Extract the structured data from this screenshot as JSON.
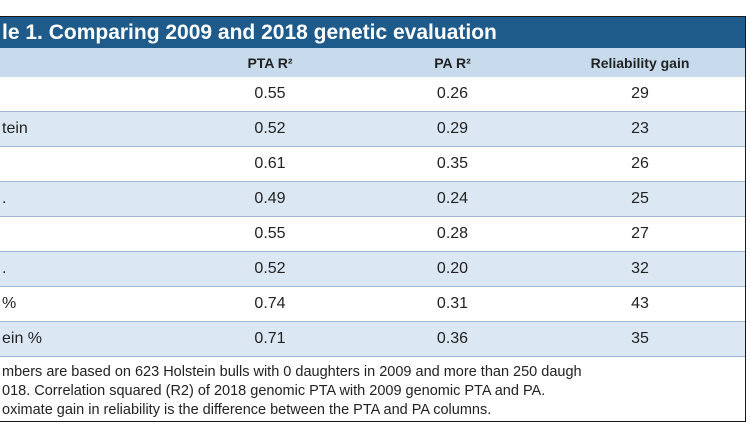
{
  "title": "le 1. Comparing 2009 and 2018 genetic evaluation",
  "table": {
    "columns": [
      "PTA R²",
      "PA R²",
      "Reliability gain"
    ],
    "rows": [
      [
        null,
        "0.55",
        "0.26",
        "29"
      ],
      [
        "tein",
        "0.52",
        "0.29",
        "23"
      ],
      [
        null,
        "0.61",
        "0.35",
        "26"
      ],
      [
        ".",
        "0.49",
        "0.24",
        "25"
      ],
      [
        null,
        "0.55",
        "0.28",
        "27"
      ],
      [
        ".",
        "0.52",
        "0.20",
        "32"
      ],
      [
        "%",
        "0.74",
        "0.31",
        "43"
      ],
      [
        "ein %",
        "0.71",
        "0.36",
        "35"
      ]
    ]
  },
  "notes": [
    "mbers are based on 623 Holstein bulls with 0 daughters in 2009 and more than 250 daugh",
    "018. Correlation squared (R2) of 2018 genomic PTA with 2009 genomic PTA and PA.",
    "oximate gain in reliability is the difference between the PTA and PA columns."
  ]
}
